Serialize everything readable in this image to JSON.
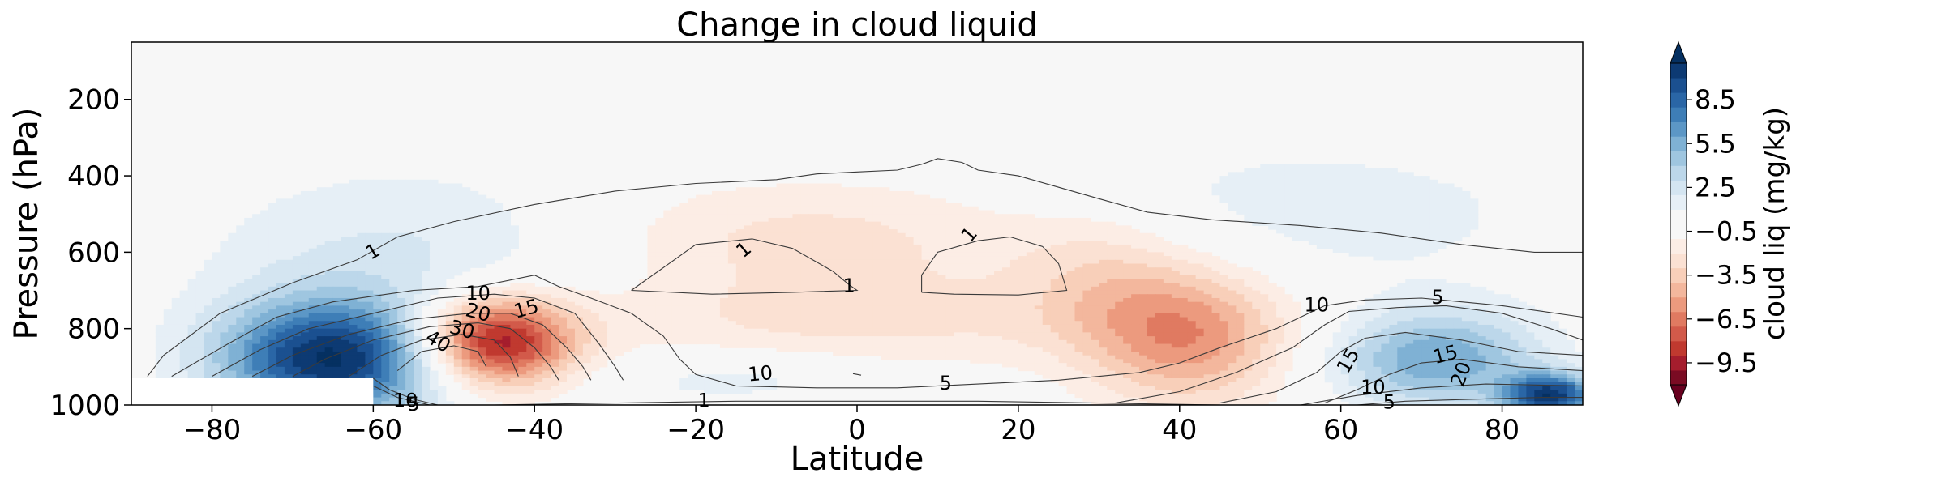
{
  "chart_data": {
    "type": "contour",
    "title": "Change in cloud liquid",
    "xlabel": "Latitude",
    "ylabel": "Pressure (hPa)",
    "xlim": [
      -90,
      90
    ],
    "ylim": [
      1000,
      50
    ],
    "xticks": [
      -80,
      -60,
      -40,
      -20,
      0,
      20,
      40,
      60,
      80
    ],
    "xtick_labels": [
      "−80",
      "−60",
      "−40",
      "−20",
      "0",
      "20",
      "40",
      "60",
      "80"
    ],
    "yticks": [
      200,
      400,
      600,
      800,
      1000
    ],
    "ytick_labels": [
      "200",
      "400",
      "600",
      "800",
      "1000"
    ],
    "colorbar": {
      "label": "cloud liq (mg/kg)",
      "range": [
        -11,
        11
      ],
      "extend": "both",
      "levels": [
        -11,
        -10,
        -9,
        -8,
        -7,
        -6,
        -5,
        -4,
        -3,
        -2,
        -1,
        0,
        1,
        2,
        3,
        4,
        5,
        6,
        7,
        8,
        9,
        10,
        11
      ],
      "colors": [
        "#7a0b23",
        "#a51d2d",
        "#c0392f",
        "#d25a4a",
        "#e07a61",
        "#ec9a7e",
        "#f3b79d",
        "#f8cfb9",
        "#fbe1d3",
        "#fcede5",
        "#f7f7f7",
        "#f7f7f7",
        "#e6eff6",
        "#d4e5f1",
        "#bcd7ea",
        "#9fc6e0",
        "#7fb1d4",
        "#5c97c6",
        "#3e7eb7",
        "#2a66a6",
        "#1b5090",
        "#0d3a73"
      ],
      "under_color": "#67001f",
      "over_color": "#053061",
      "ticks": [
        -9.5,
        -6.5,
        -3.5,
        -0.5,
        2.5,
        5.5,
        8.5
      ],
      "tick_labels": [
        "−9.5",
        "−6.5",
        "−3.5",
        "−0.5",
        "2.5",
        "5.5",
        "8.5"
      ]
    },
    "filled_anomalies": [
      {
        "name": "southern-ocean-increase",
        "lat": -65,
        "p": 880,
        "sx": 10,
        "sp": 110,
        "amp": 11
      },
      {
        "name": "southern-midlat-decrease",
        "lat": -45,
        "p": 835,
        "sx": 7,
        "sp": 85,
        "amp": -10.5
      },
      {
        "name": "southern-upper-increase",
        "lat": -55,
        "p": 600,
        "sx": 18,
        "sp": 160,
        "amp": 2.2
      },
      {
        "name": "tropical-upper-decrease",
        "lat": -5,
        "p": 560,
        "sx": 22,
        "sp": 110,
        "amp": -2.4
      },
      {
        "name": "tropical-lower-decrease",
        "lat": 0,
        "p": 780,
        "sx": 26,
        "sp": 90,
        "amp": -2.2
      },
      {
        "name": "northern-midlat-decrease",
        "lat": 41,
        "p": 820,
        "sx": 9,
        "sp": 130,
        "amp": -5.5
      },
      {
        "name": "northern-subtropic-decrease",
        "lat": 30,
        "p": 650,
        "sx": 8,
        "sp": 120,
        "amp": -2
      },
      {
        "name": "northern-upper-increase",
        "lat": 55,
        "p": 500,
        "sx": 25,
        "sp": 150,
        "amp": 1.5
      },
      {
        "name": "arctic-increase",
        "lat": 72,
        "p": 880,
        "sx": 9,
        "sp": 90,
        "amp": 6
      },
      {
        "name": "arctic-surface-increase",
        "lat": 86,
        "p": 975,
        "sx": 4,
        "sp": 40,
        "amp": 10
      },
      {
        "name": "tropical-near-surface-increase",
        "lat": -15,
        "p": 930,
        "sx": 12,
        "sp": 50,
        "amp": 1.6
      }
    ],
    "masked_region": {
      "lat_range": [
        -90,
        -60
      ],
      "p_range": [
        930,
        1000
      ]
    },
    "contour_labels": [
      {
        "text": "1",
        "lat": -60,
        "p": 600,
        "rot": -30
      },
      {
        "text": "10",
        "lat": -47,
        "p": 710,
        "rot": 0
      },
      {
        "text": "15",
        "lat": -41,
        "p": 750,
        "rot": -15
      },
      {
        "text": "20",
        "lat": -47,
        "p": 760,
        "rot": 15
      },
      {
        "text": "30",
        "lat": -49,
        "p": 805,
        "rot": 15
      },
      {
        "text": "40",
        "lat": -52,
        "p": 835,
        "rot": 30
      },
      {
        "text": "10",
        "lat": -56,
        "p": 990,
        "rot": 0
      },
      {
        "text": "5",
        "lat": -55,
        "p": 1000,
        "rot": 0
      },
      {
        "text": "1",
        "lat": -19,
        "p": 990,
        "rot": 0
      },
      {
        "text": "10",
        "lat": -12,
        "p": 920,
        "rot": -5
      },
      {
        "text": "1",
        "lat": -14,
        "p": 595,
        "rot": -40
      },
      {
        "text": "1",
        "lat": -1,
        "p": 690,
        "rot": 0
      },
      {
        "text": "1",
        "lat": 14,
        "p": 555,
        "rot": -50
      },
      {
        "text": "5",
        "lat": 11,
        "p": 945,
        "rot": 0
      },
      {
        "text": "10",
        "lat": 57,
        "p": 740,
        "rot": 0
      },
      {
        "text": "5",
        "lat": 72,
        "p": 720,
        "rot": 0
      },
      {
        "text": "15",
        "lat": 61,
        "p": 885,
        "rot": -60
      },
      {
        "text": "15",
        "lat": 73,
        "p": 870,
        "rot": -15
      },
      {
        "text": "20",
        "lat": 75,
        "p": 920,
        "rot": -70
      },
      {
        "text": "10",
        "lat": 64,
        "p": 955,
        "rot": 0
      },
      {
        "text": "5",
        "lat": 66,
        "p": 995,
        "rot": 0
      }
    ],
    "contour_lines": [
      {
        "level": 1,
        "name": "contour-1-large",
        "points": [
          [
            -88,
            925
          ],
          [
            -86,
            870
          ],
          [
            -79,
            760
          ],
          [
            -70,
            680
          ],
          [
            -62,
            620
          ],
          [
            -57,
            560
          ],
          [
            -50,
            520
          ],
          [
            -40,
            475
          ],
          [
            -30,
            440
          ],
          [
            -20,
            420
          ],
          [
            -10,
            410
          ],
          [
            -5,
            395
          ],
          [
            0,
            390
          ],
          [
            5,
            385
          ],
          [
            8,
            370
          ],
          [
            10,
            355
          ],
          [
            13,
            365
          ],
          [
            15,
            385
          ],
          [
            20,
            400
          ],
          [
            25,
            430
          ],
          [
            30,
            460
          ],
          [
            36,
            495
          ],
          [
            44,
            515
          ],
          [
            55,
            530
          ],
          [
            65,
            550
          ],
          [
            75,
            580
          ],
          [
            84,
            600
          ],
          [
            90,
            600
          ]
        ]
      },
      {
        "level": 1,
        "name": "contour-1-left-loop",
        "points": [
          [
            -28,
            700
          ],
          [
            -23,
            625
          ],
          [
            -20,
            580
          ],
          [
            -13,
            565
          ],
          [
            -8,
            590
          ],
          [
            -3,
            650
          ],
          [
            -1,
            685
          ],
          [
            0,
            700
          ],
          [
            -8,
            705
          ],
          [
            -18,
            710
          ],
          [
            -28,
            700
          ]
        ]
      },
      {
        "level": 1,
        "name": "contour-1-right-loop",
        "points": [
          [
            8,
            705
          ],
          [
            8,
            660
          ],
          [
            10,
            600
          ],
          [
            15,
            570
          ],
          [
            19,
            560
          ],
          [
            23,
            585
          ],
          [
            25,
            630
          ],
          [
            26,
            700
          ],
          [
            20,
            712
          ],
          [
            12,
            710
          ],
          [
            8,
            705
          ]
        ]
      },
      {
        "level": 5,
        "name": "contour-5-south",
        "points": [
          [
            -85,
            925
          ],
          [
            -78,
            840
          ],
          [
            -72,
            770
          ],
          [
            -65,
            730
          ],
          [
            -55,
            700
          ],
          [
            -47,
            690
          ],
          [
            -40,
            660
          ],
          [
            -37,
            690
          ],
          [
            -33,
            720
          ],
          [
            -28,
            760
          ],
          [
            -24,
            820
          ],
          [
            -22,
            880
          ],
          [
            -20,
            920
          ],
          [
            -15,
            950
          ],
          [
            -5,
            955
          ],
          [
            5,
            955
          ],
          [
            15,
            945
          ],
          [
            25,
            935
          ],
          [
            35,
            915
          ],
          [
            40,
            890
          ],
          [
            45,
            850
          ],
          [
            52,
            800
          ],
          [
            58,
            740
          ],
          [
            63,
            725
          ],
          [
            70,
            720
          ],
          [
            80,
            740
          ],
          [
            90,
            770
          ]
        ]
      },
      {
        "level": 10,
        "name": "contour-10-south",
        "points": [
          [
            -80,
            925
          ],
          [
            -74,
            855
          ],
          [
            -68,
            800
          ],
          [
            -60,
            760
          ],
          [
            -52,
            720
          ],
          [
            -45,
            710
          ],
          [
            -40,
            720
          ],
          [
            -35,
            760
          ],
          [
            -32,
            840
          ],
          [
            -30,
            900
          ],
          [
            -29,
            935
          ]
        ]
      },
      {
        "level": 10,
        "name": "contour-10-north",
        "points": [
          [
            32,
            995
          ],
          [
            40,
            965
          ],
          [
            47,
            915
          ],
          [
            54,
            850
          ],
          [
            58,
            790
          ],
          [
            61,
            755
          ],
          [
            67,
            745
          ],
          [
            73,
            740
          ],
          [
            80,
            760
          ],
          [
            86,
            800
          ],
          [
            90,
            830
          ]
        ]
      },
      {
        "level": 15,
        "name": "contour-15-south",
        "points": [
          [
            -75,
            925
          ],
          [
            -70,
            870
          ],
          [
            -63,
            815
          ],
          [
            -55,
            775
          ],
          [
            -48,
            760
          ],
          [
            -43,
            760
          ],
          [
            -39,
            790
          ],
          [
            -36,
            850
          ],
          [
            -34,
            900
          ],
          [
            -33,
            935
          ]
        ]
      },
      {
        "level": 15,
        "name": "contour-15-north",
        "points": [
          [
            45,
            995
          ],
          [
            52,
            965
          ],
          [
            57,
            915
          ],
          [
            60,
            860
          ],
          [
            63,
            825
          ],
          [
            68,
            810
          ],
          [
            75,
            830
          ],
          [
            82,
            860
          ],
          [
            90,
            870
          ]
        ]
      },
      {
        "level": 20,
        "name": "contour-20-south",
        "points": [
          [
            -70,
            925
          ],
          [
            -66,
            880
          ],
          [
            -60,
            830
          ],
          [
            -53,
            795
          ],
          [
            -47,
            785
          ],
          [
            -43,
            800
          ],
          [
            -40,
            850
          ],
          [
            -38,
            900
          ],
          [
            -37,
            935
          ]
        ]
      },
      {
        "level": 20,
        "name": "contour-20-north",
        "points": [
          [
            58,
            995
          ],
          [
            62,
            960
          ],
          [
            66,
            920
          ],
          [
            70,
            890
          ],
          [
            75,
            880
          ],
          [
            82,
            900
          ],
          [
            90,
            910
          ]
        ]
      },
      {
        "level": 30,
        "name": "contour-30-south",
        "points": [
          [
            -63,
            925
          ],
          [
            -59,
            870
          ],
          [
            -54,
            830
          ],
          [
            -49,
            815
          ],
          [
            -45,
            830
          ],
          [
            -43,
            875
          ],
          [
            -42,
            925
          ]
        ]
      },
      {
        "level": 40,
        "name": "contour-40-south",
        "points": [
          [
            -57,
            910
          ],
          [
            -54,
            860
          ],
          [
            -50,
            845
          ],
          [
            -47,
            860
          ],
          [
            -46,
            900
          ]
        ]
      },
      {
        "level": 10,
        "name": "contour-10-north-surface",
        "points": [
          [
            55,
            1000
          ],
          [
            62,
            975
          ],
          [
            70,
            955
          ],
          [
            78,
            945
          ],
          [
            90,
            950
          ]
        ]
      },
      {
        "level": 5,
        "name": "contour-5-north-surface",
        "points": [
          [
            62,
            1000
          ],
          [
            68,
            990
          ],
          [
            76,
            985
          ],
          [
            85,
            980
          ],
          [
            90,
            980
          ]
        ]
      },
      {
        "level": 1,
        "name": "contour-1-surface",
        "points": [
          [
            -45,
            1000
          ],
          [
            -30,
            995
          ],
          [
            -15,
            990
          ],
          [
            0,
            990
          ],
          [
            15,
            990
          ],
          [
            30,
            995
          ],
          [
            45,
            1000
          ]
        ]
      },
      {
        "level": 10,
        "name": "contour-10-south-surface",
        "points": [
          [
            -60,
            930
          ],
          [
            -58,
            960
          ],
          [
            -55,
            985
          ],
          [
            -52,
            1000
          ]
        ]
      },
      {
        "level": 5,
        "name": "contour-5-south-surface",
        "points": [
          [
            -60,
            950
          ],
          [
            -57,
            980
          ],
          [
            -53,
            1000
          ]
        ]
      },
      {
        "level": 5,
        "name": "contour-5-tropical-tick",
        "points": [
          [
            -0.5,
            918
          ],
          [
            0.5,
            922
          ]
        ]
      }
    ]
  }
}
